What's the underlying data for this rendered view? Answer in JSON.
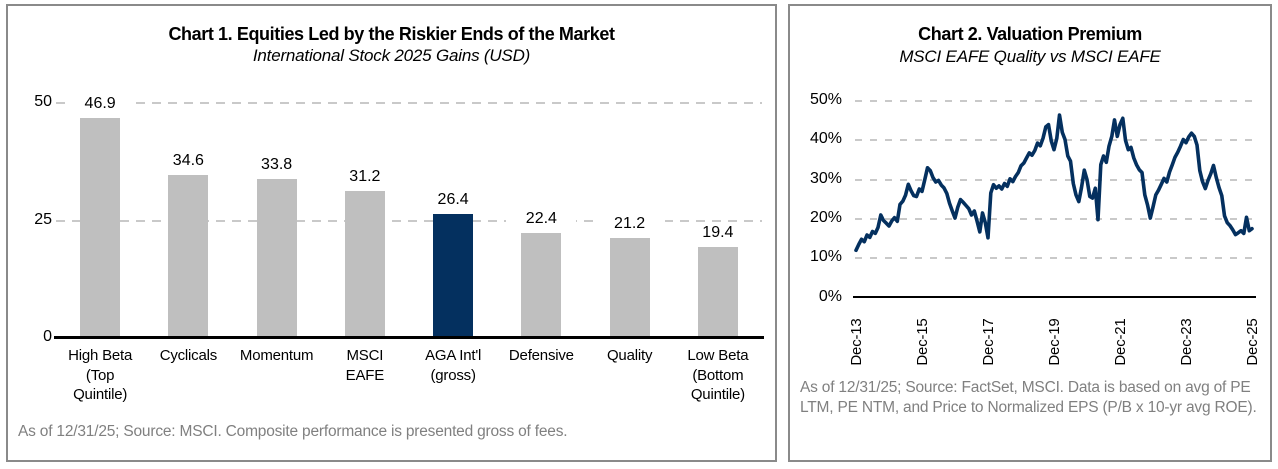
{
  "accent_color": "#04305f",
  "bar_gray": "#bfbfbf",
  "panel_border_color": "#8a8a8a",
  "footnote_color": "#808080",
  "chart_data": [
    {
      "id": "chart1",
      "type": "bar",
      "title": "Chart 1. Equities Led by the Riskier Ends of the Market",
      "subtitle": "International Stock 2025 Gains (USD)",
      "categories": [
        "High Beta\n(Top\nQuintile)",
        "Cyclicals",
        "Momentum",
        "MSCI\nEAFE",
        "AGA Int'l\n(gross)",
        "Defensive",
        "Quality",
        "Low Beta\n(Bottom\nQuintile)"
      ],
      "values": [
        46.9,
        34.6,
        33.8,
        31.2,
        26.4,
        22.4,
        21.2,
        19.4
      ],
      "highlight_index": 4,
      "bar_color": "#bfbfbf",
      "highlight_color": "#04305f",
      "ylim": [
        0,
        50
      ],
      "y_ticks": [
        0,
        25,
        50
      ],
      "y_tick_labels": [
        "0",
        "25",
        "50"
      ],
      "gridline_values": [
        25,
        50
      ],
      "grid": "dashed horizontal",
      "legend": "none",
      "footnote": "As of 12/31/25; Source: MSCI. Composite performance is presented gross of fees."
    },
    {
      "id": "chart2",
      "type": "line",
      "title": "Chart 2. Valuation Premium",
      "subtitle": "MSCI EAFE Quality vs MSCI EAFE",
      "line_color": "#04305f",
      "ylim": [
        0,
        50
      ],
      "y_ticks": [
        0,
        10,
        20,
        30,
        40,
        50
      ],
      "y_tick_labels": [
        "0%",
        "10%",
        "20%",
        "30%",
        "40%",
        "50%"
      ],
      "gridline_values": [
        10,
        20,
        30,
        40,
        50
      ],
      "grid": "dashed horizontal",
      "legend": "none",
      "x_tick_labels": [
        "Dec-13",
        "Dec-15",
        "Dec-17",
        "Dec-19",
        "Dec-21",
        "Dec-23",
        "Dec-25"
      ],
      "x_start": "Dec-13",
      "x_end": "Dec-25",
      "x_frequency": "monthly",
      "values_pct": [
        12.0,
        13.5,
        14.8,
        14.2,
        15.9,
        15.3,
        16.8,
        16.3,
        17.8,
        21.0,
        19.6,
        18.9,
        18.2,
        19.5,
        20.3,
        19.4,
        23.7,
        24.5,
        26.0,
        28.8,
        27.2,
        25.9,
        25.7,
        27.6,
        27.0,
        30.0,
        33.0,
        32.3,
        30.5,
        29.4,
        29.8,
        28.6,
        27.9,
        26.5,
        24.0,
        22.0,
        20.2,
        23.0,
        24.9,
        24.2,
        23.4,
        22.6,
        21.0,
        22.0,
        19.5,
        16.7,
        21.5,
        19.0,
        15.2,
        26.6,
        28.7,
        27.8,
        28.4,
        27.6,
        29.0,
        28.3,
        30.2,
        29.5,
        30.8,
        31.8,
        33.5,
        34.2,
        35.5,
        36.8,
        36.2,
        37.4,
        39.3,
        38.6,
        40.5,
        43.4,
        44.0,
        39.8,
        37.6,
        40.5,
        46.4,
        42.0,
        40.2,
        36.0,
        34.7,
        29.0,
        26.1,
        24.4,
        28.0,
        32.4,
        30.0,
        25.7,
        25.3,
        27.8,
        19.8,
        33.8,
        36.0,
        34.4,
        38.5,
        41.0,
        45.2,
        41.0,
        44.0,
        45.6,
        40.0,
        37.6,
        38.2,
        35.5,
        33.8,
        32.5,
        31.8,
        26.1,
        23.6,
        20.2,
        23.0,
        26.1,
        27.3,
        28.8,
        30.3,
        29.4,
        31.9,
        33.8,
        35.7,
        37.0,
        38.5,
        40.2,
        39.4,
        40.9,
        41.8,
        41.0,
        38.8,
        32.3,
        29.5,
        27.7,
        29.8,
        31.5,
        33.6,
        30.5,
        28.0,
        25.9,
        20.8,
        19.0,
        18.3,
        17.2,
        16.0,
        16.5,
        17.0,
        16.3,
        20.4,
        17.0,
        17.5
      ],
      "footnote": "As of 12/31/25; Source: FactSet, MSCI. Data is based on avg of PE LTM,  PE NTM,  and  Price to Normalized EPS (P/B x 10-yr avg ROE)."
    }
  ]
}
